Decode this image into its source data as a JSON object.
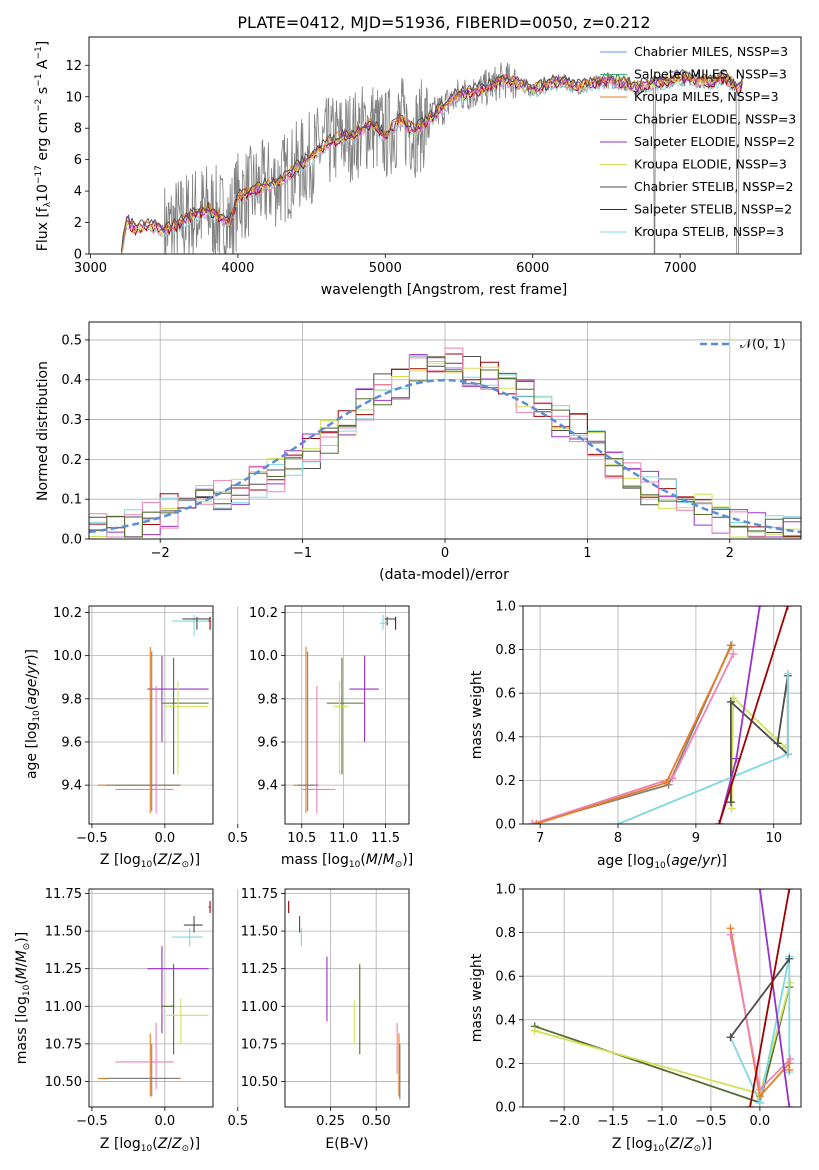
{
  "colors": {
    "chabrier_miles": "#6495ed",
    "salpeter_miles": "#3cb371",
    "kroupa_miles": "#e67e22",
    "chabrier_elodie": "#808080",
    "salpeter_elodie": "#9932cc",
    "kroupa_elodie": "#d4e157",
    "chabrier_stelib": "#4d4d4d",
    "salpeter_stelib": "#a00000",
    "kroupa_stelib": "#80d8e0",
    "pink": "#ee82b4",
    "dark_olive": "#556b2f",
    "normal_dashed": "#5a8fd6"
  },
  "chart_data": [
    {
      "id": "spectrum",
      "type": "line",
      "title": "PLATE=0412, MJD=51936, FIBERID=0050, z=0.212",
      "xlabel": "wavelength [Angstrom, rest frame]",
      "ylabel": "Flux [fλ10⁻¹⁷ erg cm⁻² s⁻¹ A⁻¹]",
      "xlim": [
        2990,
        7820
      ],
      "ylim": [
        0,
        13.8
      ],
      "xticks": [
        "3000",
        "4000",
        "5000",
        "6000",
        "7000"
      ],
      "yticks": [
        "0",
        "2",
        "4",
        "6",
        "8",
        "10",
        "12"
      ],
      "legend_position": "top-right",
      "legend": [
        "Chabrier MILES, NSSP=3",
        "Salpeter MILES, NSSP=3",
        "Kroupa MILES, NSSP=3",
        "Chabrier ELODIE, NSSP=3",
        "Salpeter ELODIE, NSSP=2",
        "Kroupa ELODIE, NSSP=3",
        "Chabrier STELIB, NSSP=2",
        "Salpeter STELIB, NSSP=2",
        "Kroupa STELIB, NSSP=3"
      ],
      "model_continuum": [
        [
          3210,
          0.0
        ],
        [
          3225,
          1.0
        ],
        [
          3240,
          2.1
        ],
        [
          3300,
          1.6
        ],
        [
          3400,
          1.8
        ],
        [
          3500,
          1.5
        ],
        [
          3600,
          1.9
        ],
        [
          3700,
          2.5
        ],
        [
          3800,
          2.8
        ],
        [
          3900,
          2.2
        ],
        [
          3950,
          2.0
        ],
        [
          4000,
          3.6
        ],
        [
          4100,
          4.0
        ],
        [
          4200,
          4.4
        ],
        [
          4300,
          4.7
        ],
        [
          4400,
          5.5
        ],
        [
          4500,
          6.2
        ],
        [
          4600,
          7.0
        ],
        [
          4700,
          7.4
        ],
        [
          4800,
          7.6
        ],
        [
          4900,
          8.3
        ],
        [
          5000,
          7.5
        ],
        [
          5100,
          8.5
        ],
        [
          5200,
          7.8
        ],
        [
          5300,
          8.6
        ],
        [
          5400,
          9.4
        ],
        [
          5500,
          10.1
        ],
        [
          5600,
          10.3
        ],
        [
          5700,
          10.6
        ],
        [
          5800,
          11.1
        ],
        [
          5900,
          10.9
        ],
        [
          6000,
          10.4
        ],
        [
          6100,
          10.8
        ],
        [
          6200,
          11.0
        ],
        [
          6300,
          10.6
        ],
        [
          6400,
          10.8
        ],
        [
          6500,
          11.0
        ],
        [
          6600,
          10.9
        ],
        [
          6700,
          10.6
        ],
        [
          6800,
          10.8
        ],
        [
          6900,
          11.0
        ],
        [
          7000,
          11.2
        ],
        [
          7100,
          11.1
        ],
        [
          7200,
          10.9
        ],
        [
          7300,
          11.2
        ],
        [
          7400,
          10.5
        ],
        [
          7430,
          11.0
        ]
      ]
    },
    {
      "id": "residuals",
      "type": "line",
      "xlabel": "(data-model)/error",
      "ylabel": "Normed distribution",
      "xlim": [
        -2.5,
        2.5
      ],
      "ylim": [
        0,
        0.545
      ],
      "xticks": [
        "−2",
        "−1",
        "0",
        "1",
        "2"
      ],
      "yticks": [
        "0.0",
        "0.1",
        "0.2",
        "0.3",
        "0.4",
        "0.5"
      ],
      "legend_position": "top-right",
      "legend": [
        "𝒩(0, 1)"
      ],
      "hist_envelope": [
        0.02,
        0.03,
        0.04,
        0.05,
        0.07,
        0.09,
        0.1,
        0.11,
        0.12,
        0.14,
        0.16,
        0.19,
        0.22,
        0.26,
        0.3,
        0.34,
        0.37,
        0.39,
        0.42,
        0.45,
        0.44,
        0.42,
        0.41,
        0.39,
        0.36,
        0.33,
        0.3,
        0.27,
        0.23,
        0.19,
        0.16,
        0.13,
        0.11,
        0.09,
        0.07,
        0.05,
        0.04,
        0.03,
        0.02,
        0.02
      ]
    },
    {
      "id": "age_vs_Z",
      "type": "scatter",
      "xlabel": "Z [log10(Z/Z⊙)]",
      "ylabel": "age  [log10(age/yr)]",
      "xlim": [
        -0.52,
        0.33
      ],
      "ylim": [
        9.22,
        10.23
      ],
      "xticks": [
        "−0.5",
        "0.0",
        "0.5"
      ],
      "yticks": [
        "9.4",
        "9.6",
        "9.8",
        "10.0",
        "10.2"
      ]
    },
    {
      "id": "age_vs_mass",
      "type": "scatter",
      "xlabel": "mass [log10(M/M⊙)]",
      "xlim": [
        10.3,
        11.78
      ],
      "ylim": [
        9.22,
        10.23
      ],
      "xticks": [
        "10.5",
        "11.0",
        "11.5"
      ],
      "yticks": [
        "9.4",
        "9.6",
        "9.8",
        "10.0",
        "10.2"
      ]
    },
    {
      "id": "weight_vs_age",
      "type": "line",
      "xlabel": "age  [log10(age/yr)]",
      "ylabel": "mass weight",
      "xlim": [
        6.78,
        10.35
      ],
      "ylim": [
        0,
        1.0
      ],
      "xticks": [
        "7",
        "8",
        "9",
        "10"
      ],
      "yticks": [
        "0.0",
        "0.2",
        "0.4",
        "0.6",
        "0.8",
        "1.0"
      ]
    },
    {
      "id": "mass_vs_Z",
      "type": "scatter",
      "xlabel": "Z [log10(Z/Z⊙)]",
      "ylabel": "mass [log10(M/M⊙)]",
      "xlim": [
        -0.52,
        0.33
      ],
      "ylim": [
        10.33,
        11.78
      ],
      "xticks": [
        "−0.5",
        "0.0",
        "0.5"
      ],
      "yticks": [
        "10.50",
        "10.75",
        "11.00",
        "11.25",
        "11.50",
        "11.75"
      ]
    },
    {
      "id": "mass_vs_ebv",
      "type": "scatter",
      "xlabel": "E(B-V)",
      "xlim": [
        0.0,
        0.68
      ],
      "ylim": [
        10.33,
        11.78
      ],
      "xticks": [
        "0.25",
        "0.50"
      ],
      "yticks": [
        "10.50",
        "10.75",
        "11.00",
        "11.25",
        "11.50",
        "11.75"
      ]
    },
    {
      "id": "weight_vs_Z",
      "type": "line",
      "xlabel": "Z [log10(Z/Z⊙)]",
      "ylabel": "mass weight",
      "xlim": [
        -2.42,
        0.42
      ],
      "ylim": [
        0,
        1.0
      ],
      "xticks": [
        "−2.0",
        "−1.5",
        "−1.0",
        "−0.5",
        "0.0"
      ],
      "yticks": [
        "0.0",
        "0.2",
        "0.4",
        "0.6",
        "0.8",
        "1.0"
      ]
    }
  ]
}
